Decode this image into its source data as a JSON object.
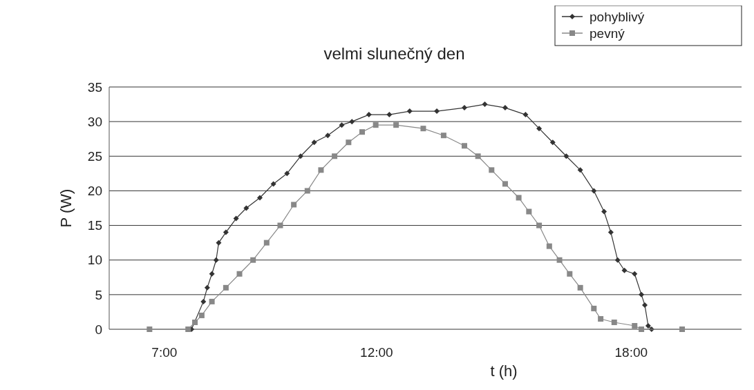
{
  "chart_data": {
    "type": "line",
    "title": "velmi slunečný den",
    "xlabel": "t (h)",
    "ylabel": "P (W)",
    "xlim": [
      5.7,
      20.6
    ],
    "xticks": [
      {
        "value": 7,
        "label": "7:00"
      },
      {
        "value": 12,
        "label": "12:00"
      },
      {
        "value": 18,
        "label": "18:00"
      }
    ],
    "ylim": [
      0,
      35
    ],
    "yticks": [
      0,
      5,
      10,
      15,
      20,
      25,
      30,
      35
    ],
    "grid": "y",
    "legend": "top right",
    "series": [
      {
        "name": "pohyblivý",
        "color": "#333333",
        "marker": "diamond",
        "x": [
          7.64,
          7.92,
          8.01,
          8.12,
          8.22,
          8.28,
          8.45,
          8.69,
          8.93,
          9.25,
          9.57,
          9.89,
          10.21,
          10.53,
          10.85,
          11.18,
          11.42,
          11.82,
          12.3,
          12.78,
          13.42,
          14.07,
          14.55,
          15.03,
          15.51,
          15.83,
          16.15,
          16.47,
          16.8,
          17.12,
          17.36,
          17.52,
          17.68,
          17.84,
          18.08,
          18.24,
          18.32,
          18.4,
          18.48
        ],
        "values": [
          0,
          4,
          6,
          8,
          10,
          12.5,
          14,
          16,
          17.5,
          19,
          21,
          22.5,
          25,
          27,
          28,
          29.5,
          30,
          31,
          31,
          31.5,
          31.5,
          32,
          32.5,
          32,
          31,
          29,
          27,
          25,
          23,
          20,
          17,
          14,
          10,
          8.5,
          8,
          5,
          3.5,
          0.5,
          0
        ]
      },
      {
        "name": "pevný",
        "color": "#888888",
        "marker": "square",
        "x": [
          6.65,
          7.56,
          7.72,
          7.88,
          8.12,
          8.45,
          8.77,
          9.09,
          9.41,
          9.73,
          10.05,
          10.37,
          10.69,
          11.01,
          11.34,
          11.66,
          11.98,
          12.46,
          13.1,
          13.58,
          14.07,
          14.39,
          14.71,
          15.03,
          15.35,
          15.59,
          15.83,
          16.07,
          16.31,
          16.55,
          16.8,
          17.12,
          17.28,
          17.6,
          18.08,
          18.24,
          19.2
        ],
        "values": [
          0,
          0,
          1,
          2,
          4,
          6,
          8,
          10,
          12.5,
          15,
          18,
          20,
          23,
          25,
          27,
          28.5,
          29.5,
          29.5,
          29,
          28,
          26.5,
          25,
          23,
          21,
          19,
          17,
          15,
          12,
          10,
          8,
          6,
          3,
          1.5,
          1,
          0.5,
          0,
          0
        ]
      }
    ]
  }
}
